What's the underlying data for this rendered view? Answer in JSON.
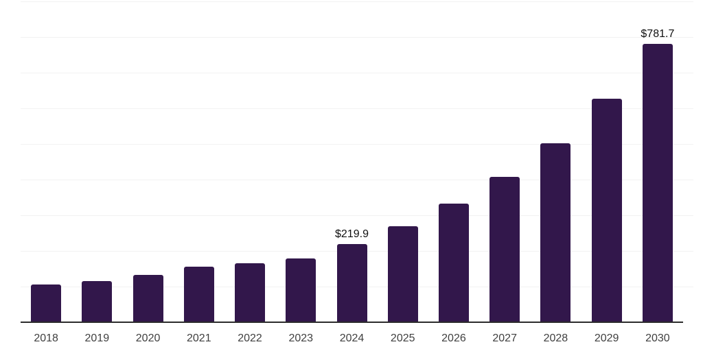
{
  "chart_data": {
    "type": "bar",
    "title": "",
    "xlabel": "",
    "ylabel": "",
    "categories": [
      "2018",
      "2019",
      "2020",
      "2021",
      "2022",
      "2023",
      "2024",
      "2025",
      "2026",
      "2027",
      "2028",
      "2029",
      "2030"
    ],
    "values": [
      105,
      116,
      132,
      156,
      166,
      179,
      219.9,
      269,
      332,
      408,
      501,
      627,
      781.7
    ],
    "annotations": [
      {
        "category": "2024",
        "index": 6,
        "text": "$219.9"
      },
      {
        "category": "2030",
        "index": 12,
        "text": "$781.7"
      }
    ],
    "ylim": [
      0,
      900
    ],
    "gridline_step": 100,
    "grid": true,
    "legend": false
  },
  "style": {
    "background": "#ffffff",
    "bar_color": "#32174b",
    "grid_color": "#f2f2f2",
    "axis_color": "#2b2b2b",
    "tick_label_color": "#3f3f3f",
    "annotation_color": "#0f0f0f"
  }
}
